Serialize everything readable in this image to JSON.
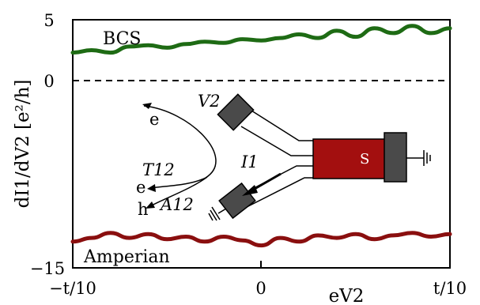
{
  "chart_data": {
    "type": "line",
    "xlabel": "eV2",
    "ylabel": "dI1/dV2 [e²/h]",
    "x_range": [
      -1,
      1
    ],
    "x_tick_labels": [
      "−t/10",
      "0",
      "t/10"
    ],
    "y_range": [
      -15,
      5
    ],
    "y_ticks": [
      5,
      0,
      -15
    ],
    "y_tick_labels": [
      "5",
      "0",
      "−15"
    ],
    "zero_line": {
      "y": 0,
      "style": "dashed"
    },
    "grid": false,
    "series": [
      {
        "name": "BCS",
        "color": "#1e6b14",
        "x": [
          -1.0,
          -0.9,
          -0.8,
          -0.7,
          -0.6,
          -0.5,
          -0.4,
          -0.3,
          -0.2,
          -0.1,
          0.0,
          0.1,
          0.2,
          0.3,
          0.4,
          0.5,
          0.6,
          0.7,
          0.8,
          0.9,
          1.0
        ],
        "values": [
          2.3,
          2.5,
          2.3,
          2.8,
          2.9,
          2.7,
          3.0,
          3.2,
          3.1,
          3.4,
          3.3,
          3.5,
          3.8,
          3.5,
          4.1,
          3.6,
          4.3,
          3.9,
          4.5,
          3.9,
          4.3
        ]
      },
      {
        "name": "Amperian",
        "color": "#8a0f0f",
        "x": [
          -1.0,
          -0.9,
          -0.8,
          -0.7,
          -0.6,
          -0.5,
          -0.4,
          -0.3,
          -0.2,
          -0.1,
          0.0,
          0.1,
          0.2,
          0.3,
          0.4,
          0.5,
          0.6,
          0.7,
          0.8,
          0.9,
          1.0
        ],
        "values": [
          -12.9,
          -12.6,
          -12.2,
          -12.6,
          -12.3,
          -12.7,
          -12.5,
          -12.9,
          -12.5,
          -12.8,
          -13.2,
          -12.6,
          -12.9,
          -12.4,
          -12.6,
          -12.3,
          -12.7,
          -12.4,
          -12.2,
          -12.5,
          -12.3
        ]
      }
    ]
  },
  "inset": {
    "terminal_v2": "V2",
    "terminal_s": "S",
    "current_i1": "I1",
    "particle_incoming": "e",
    "transmitted_label": "T12",
    "transmitted_particle": "e",
    "andreev_label": "A12",
    "andreev_particle": "h"
  },
  "colors": {
    "superconductor": "#a30f0f",
    "contact": "#4a4a4a"
  }
}
